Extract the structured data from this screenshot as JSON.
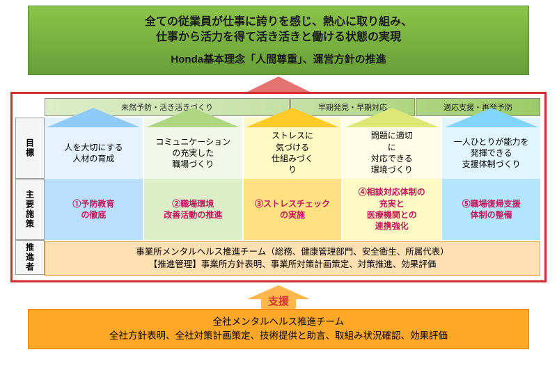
{
  "topBanner": {
    "line1": "全ての従業員が仕事に誇りを感じ、熱心に取り組み、",
    "line2": "仕事から活力を得て活き活きと働ける状態の実現",
    "line3": "Honda基本理念「人間尊重」、運営方針の推進"
  },
  "arrowColors": {
    "top": "#e57373",
    "support": "#ffb74d"
  },
  "phases": [
    {
      "label": "未然予防・活き活きづくり",
      "bg": "ph1"
    },
    {
      "label": "早期発見・早期対応",
      "bg": "ph2"
    },
    {
      "label": "適応支援・再発予防",
      "bg": "ph3"
    }
  ],
  "rowLabels": [
    "目標",
    "主要施策",
    "推進者"
  ],
  "columns": [
    {
      "goal": "人を大切にする\n人材の育成",
      "measure": "①予防教育\nの徹底",
      "topBg": "#e3f2fd",
      "botBg": "#bbdefb",
      "roof": "#90caf9"
    },
    {
      "goal": "コミュニケーション\nの充実した\n職場づくり",
      "measure": "②職場環境\n改善活動の推進",
      "topBg": "#f1f8e9",
      "botBg": "#dcedc8",
      "roof": "#aed581"
    },
    {
      "goal": "ストレスに\n気づける\n仕組みづく\nり",
      "measure": "③ストレスチェック\nの実施",
      "topBg": "#fff9c4",
      "botBg": "#ffe082",
      "roof": "#ffca28"
    },
    {
      "goal": "問題に適切\nに\n対応できる\n環境づくり",
      "measure": "④相談対応体制の\n充実と\n医療機関との\n連携強化",
      "topBg": "#fffde7",
      "botBg": "#fff9c4",
      "roof": "#dce775"
    },
    {
      "goal": "一人ひとりが能力を\n発揮できる\n支援体制づくり",
      "measure": "⑤職場復帰支援\n体制の整備",
      "topBg": "#e1f5fe",
      "botBg": "#b3e5fc",
      "roof": "#81d4fa"
    }
  ],
  "promoter": {
    "line1": "事業所メンタルヘルス推進チーム（総務、健康管理部門、安全衛生、所属代表）",
    "line2": "【推進管理】事業所方針表明、事業所対策計画策定、対策推進、効果評価"
  },
  "supportLabel": "支援",
  "bottomBanner": {
    "line1": "全社メンタルヘルス推進チーム",
    "line2": "全社方針表明、全社対策計画策定、技術提供と助言、取組み状況確認、効果評価"
  }
}
